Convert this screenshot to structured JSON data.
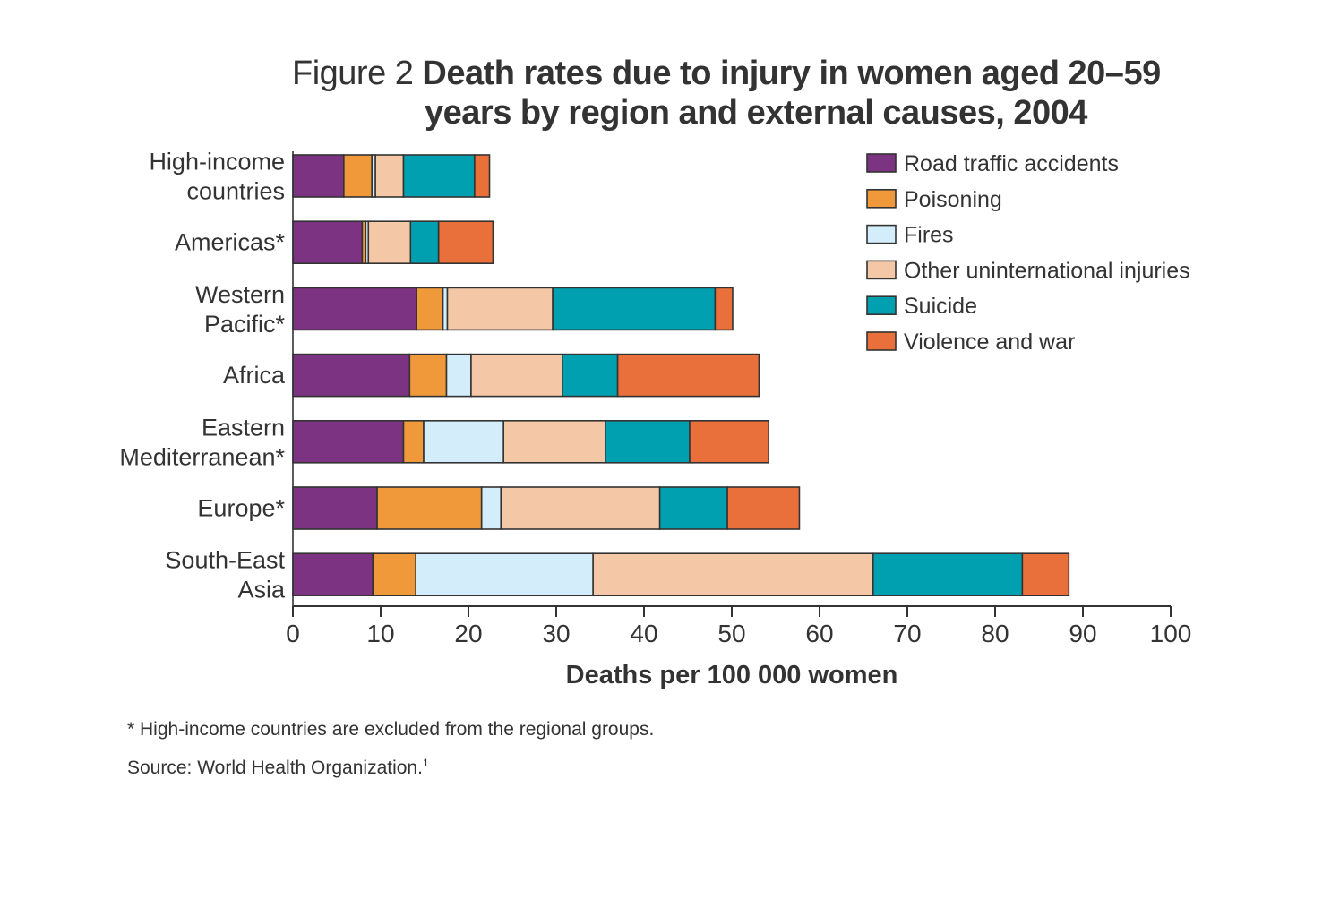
{
  "figure_label": "Figure 2",
  "title_line1": "Death rates due to injury in women aged 20–59",
  "title_line2": "years by region and external causes, 2004",
  "footnote": "* High-income countries are excluded from the regional groups.",
  "source_text": "Source: World Health Organization.",
  "source_sup": "1",
  "chart_data": {
    "type": "bar",
    "orientation": "horizontal",
    "stacked": true,
    "xlabel": "Deaths per 100 000 women",
    "xlim": [
      0,
      100
    ],
    "xticks": [
      0,
      10,
      20,
      30,
      40,
      50,
      60,
      70,
      80,
      90,
      100
    ],
    "categories": [
      [
        "High-income",
        "countries"
      ],
      [
        "Americas*"
      ],
      [
        "Western",
        "Pacific*"
      ],
      [
        "Africa"
      ],
      [
        "Eastern",
        "Mediterranean*"
      ],
      [
        "Europe*"
      ],
      [
        "South-East",
        "Asia"
      ]
    ],
    "series": [
      {
        "name": "Road traffic accidents",
        "color": "#7b3382",
        "values": [
          5.8,
          7.9,
          14.1,
          13.3,
          12.6,
          9.6,
          9.1
        ]
      },
      {
        "name": "Poisoning",
        "color": "#f0993a",
        "values": [
          3.2,
          0.4,
          3.0,
          4.2,
          2.3,
          11.9,
          4.9
        ]
      },
      {
        "name": "Fires",
        "color": "#d3eefa",
        "values": [
          0.4,
          0.3,
          0.5,
          2.8,
          9.1,
          2.2,
          20.2
        ]
      },
      {
        "name": "Other uninternational injuries",
        "color": "#f4c8a6",
        "values": [
          3.2,
          4.8,
          12.0,
          10.4,
          11.6,
          18.1,
          31.9
        ]
      },
      {
        "name": "Suicide",
        "color": "#00a0b0",
        "values": [
          8.1,
          3.2,
          18.5,
          6.3,
          9.6,
          7.7,
          17.0
        ]
      },
      {
        "name": "Violence and war",
        "color": "#ea703b",
        "values": [
          1.7,
          6.2,
          2.0,
          16.1,
          9.0,
          8.2,
          5.3
        ]
      }
    ],
    "legend_position": "top-right",
    "grid": false
  }
}
